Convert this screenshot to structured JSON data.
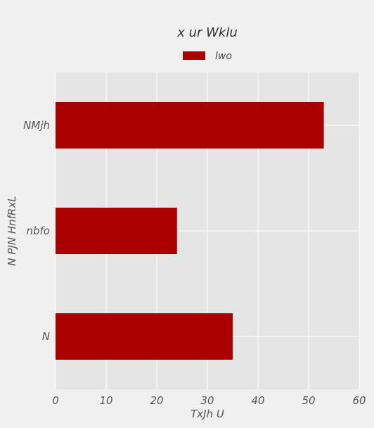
{
  "chart_data": {
    "type": "bar",
    "orientation": "horizontal",
    "title": "x ur Wklu",
    "xlabel": "TxJh U",
    "ylabel": "N PJN HnfRxL",
    "categories": [
      "N",
      "nbfo",
      "NMjh"
    ],
    "series": [
      {
        "name": "lwo",
        "values": [
          35,
          24,
          53
        ]
      }
    ],
    "xlim": [
      0,
      60
    ],
    "xticks": [
      0,
      10,
      20,
      30,
      40,
      50,
      60
    ],
    "grid": true,
    "legend_position": "top-center",
    "colors": {
      "bar": "#aa0000",
      "plot_background": "#e5e5e5",
      "figure_background": "#f0f0f0",
      "grid": "#ffffff"
    }
  }
}
